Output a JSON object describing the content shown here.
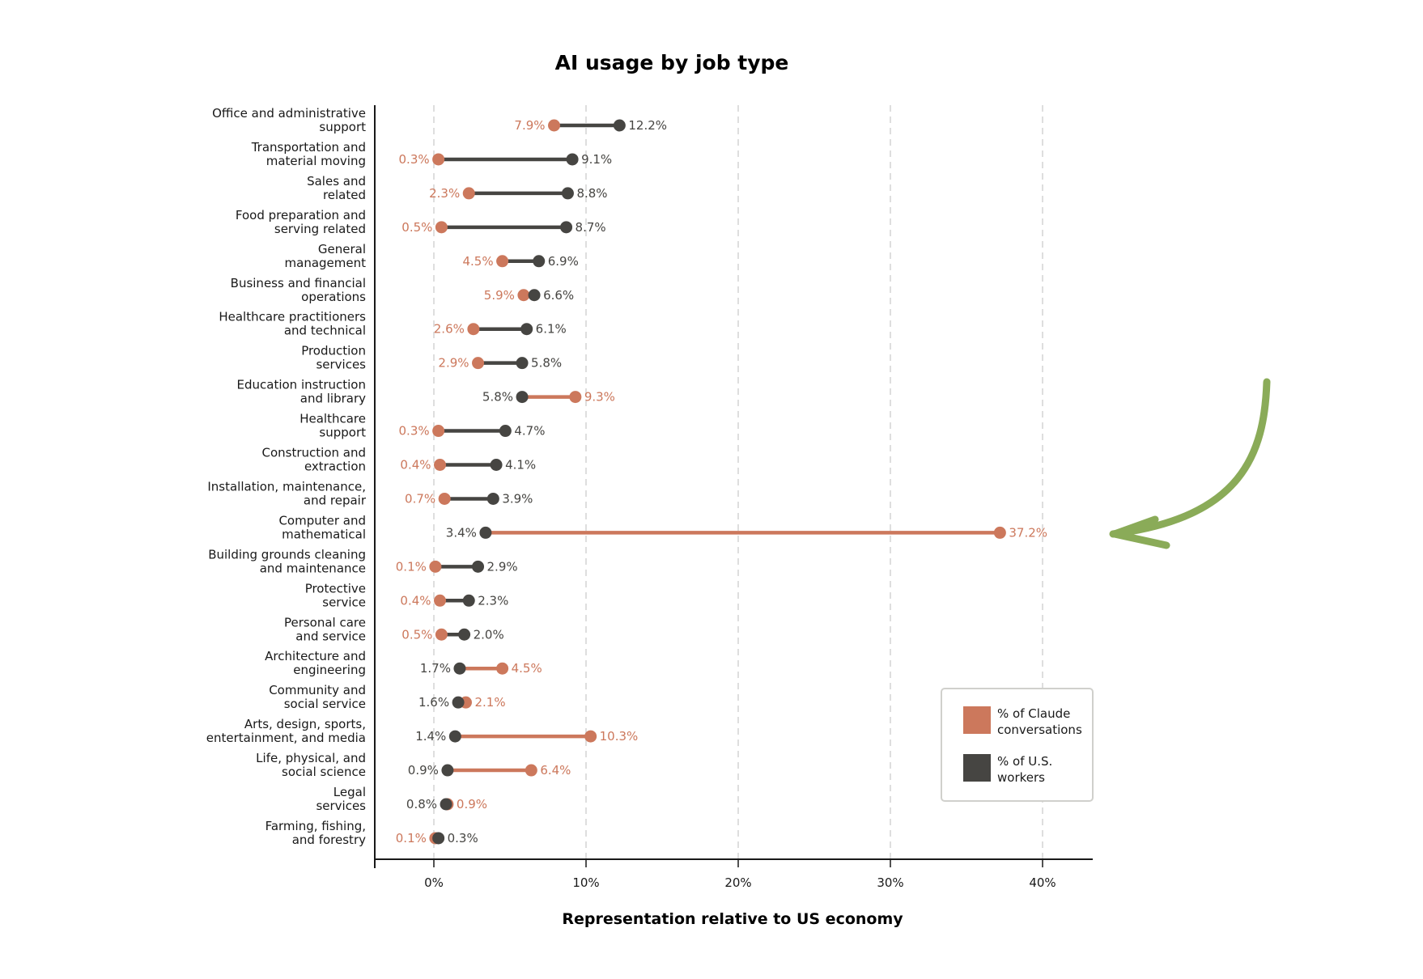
{
  "chart_data": {
    "type": "dumbbell",
    "title": "AI usage by job type",
    "xlabel": "Representation relative to US economy",
    "xlim": [
      -3.8,
      43.2
    ],
    "xticks": [
      0,
      10,
      20,
      30,
      40
    ],
    "xtick_labels": [
      "0%",
      "10%",
      "20%",
      "30%",
      "40%"
    ],
    "grid": "vertical dashed",
    "legend_position": "bottom-right",
    "colors": {
      "claude": "#cc785c",
      "workers": "#464542",
      "grid": "#d6d6d6",
      "arrow": "#8aab58"
    },
    "series": [
      {
        "key": "claude",
        "name": "% of Claude conversations"
      },
      {
        "key": "workers",
        "name": "% of U.S. workers"
      }
    ],
    "categories": [
      {
        "lines": [
          "Office and administrative",
          "support"
        ],
        "claude": 7.9,
        "workers": 12.2,
        "claude_label": "7.9%",
        "workers_label": "12.2%"
      },
      {
        "lines": [
          "Transportation and",
          "material moving"
        ],
        "claude": 0.3,
        "workers": 9.1,
        "claude_label": "0.3%",
        "workers_label": "9.1%"
      },
      {
        "lines": [
          "Sales and",
          "related"
        ],
        "claude": 2.3,
        "workers": 8.8,
        "claude_label": "2.3%",
        "workers_label": "8.8%"
      },
      {
        "lines": [
          "Food preparation and",
          "serving related"
        ],
        "claude": 0.5,
        "workers": 8.7,
        "claude_label": "0.5%",
        "workers_label": "8.7%"
      },
      {
        "lines": [
          "General",
          "management"
        ],
        "claude": 4.5,
        "workers": 6.9,
        "claude_label": "4.5%",
        "workers_label": "6.9%"
      },
      {
        "lines": [
          "Business and financial",
          "operations"
        ],
        "claude": 5.9,
        "workers": 6.6,
        "claude_label": "5.9%",
        "workers_label": "6.6%"
      },
      {
        "lines": [
          "Healthcare practitioners",
          "and technical"
        ],
        "claude": 2.6,
        "workers": 6.1,
        "claude_label": "2.6%",
        "workers_label": "6.1%"
      },
      {
        "lines": [
          "Production",
          "services"
        ],
        "claude": 2.9,
        "workers": 5.8,
        "claude_label": "2.9%",
        "workers_label": "5.8%"
      },
      {
        "lines": [
          "Education instruction",
          "and library"
        ],
        "claude": 9.3,
        "workers": 5.8,
        "claude_label": "9.3%",
        "workers_label": "5.8%"
      },
      {
        "lines": [
          "Healthcare",
          "support"
        ],
        "claude": 0.3,
        "workers": 4.7,
        "claude_label": "0.3%",
        "workers_label": "4.7%"
      },
      {
        "lines": [
          "Construction and",
          "extraction"
        ],
        "claude": 0.4,
        "workers": 4.1,
        "claude_label": "0.4%",
        "workers_label": "4.1%"
      },
      {
        "lines": [
          "Installation, maintenance,",
          "and repair"
        ],
        "claude": 0.7,
        "workers": 3.9,
        "claude_label": "0.7%",
        "workers_label": "3.9%"
      },
      {
        "lines": [
          "Computer and",
          "mathematical"
        ],
        "claude": 37.2,
        "workers": 3.4,
        "claude_label": "37.2%",
        "workers_label": "3.4%"
      },
      {
        "lines": [
          "Building grounds cleaning",
          "and maintenance"
        ],
        "claude": 0.1,
        "workers": 2.9,
        "claude_label": "0.1%",
        "workers_label": "2.9%"
      },
      {
        "lines": [
          "Protective",
          "service"
        ],
        "claude": 0.4,
        "workers": 2.3,
        "claude_label": "0.4%",
        "workers_label": "2.3%"
      },
      {
        "lines": [
          "Personal care",
          "and service"
        ],
        "claude": 0.5,
        "workers": 2.0,
        "claude_label": "0.5%",
        "workers_label": "2.0%"
      },
      {
        "lines": [
          "Architecture and",
          "engineering"
        ],
        "claude": 4.5,
        "workers": 1.7,
        "claude_label": "4.5%",
        "workers_label": "1.7%"
      },
      {
        "lines": [
          "Community and",
          "social service"
        ],
        "claude": 2.1,
        "workers": 1.6,
        "claude_label": "2.1%",
        "workers_label": "1.6%"
      },
      {
        "lines": [
          "Arts, design, sports,",
          "entertainment, and media"
        ],
        "claude": 10.3,
        "workers": 1.4,
        "claude_label": "10.3%",
        "workers_label": "1.4%"
      },
      {
        "lines": [
          "Life, physical, and",
          "social science"
        ],
        "claude": 6.4,
        "workers": 0.9,
        "claude_label": "6.4%",
        "workers_label": "0.9%"
      },
      {
        "lines": [
          "Legal",
          "services"
        ],
        "claude": 0.9,
        "workers": 0.8,
        "claude_label": "0.9%",
        "workers_label": "0.8%"
      },
      {
        "lines": [
          "Farming, fishing,",
          "and forestry"
        ],
        "claude": 0.1,
        "workers": 0.3,
        "claude_label": "0.1%",
        "workers_label": "0.3%"
      }
    ],
    "legend": [
      {
        "key": "claude",
        "lines": [
          "% of Claude",
          "conversations"
        ]
      },
      {
        "key": "workers",
        "lines": [
          "% of U.S.",
          "workers"
        ]
      }
    ],
    "annotation": {
      "type": "curved-arrow",
      "icon": "curved-arrow-icon",
      "points_to": "Computer and mathematical"
    }
  }
}
